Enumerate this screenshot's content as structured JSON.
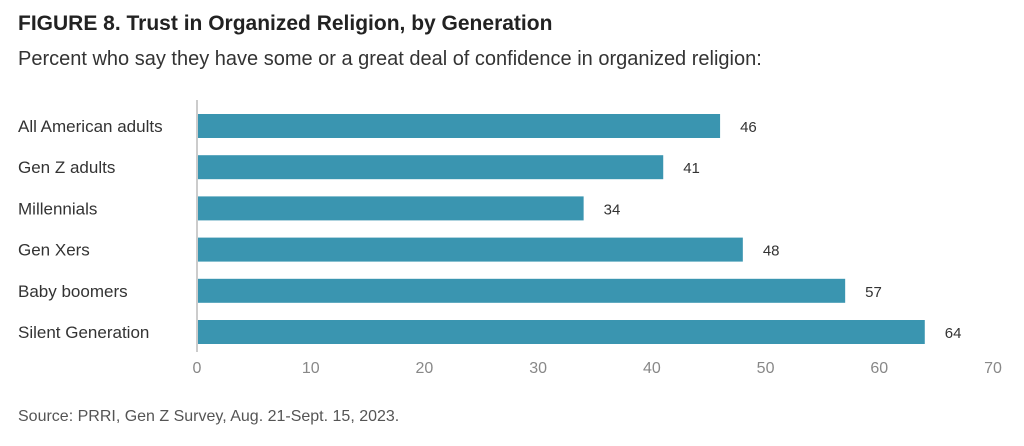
{
  "chart_data": {
    "type": "bar",
    "orientation": "horizontal",
    "title": "FIGURE 8. Trust in Organized Religion, by Generation",
    "subtitle": "Percent who say they have some or a great deal of confidence in organized religion:",
    "categories": [
      "All American adults",
      "Gen Z adults",
      "Millennials",
      "Gen Xers",
      "Baby boomers",
      "Silent Generation"
    ],
    "values": [
      46,
      41,
      34,
      48,
      57,
      64
    ],
    "xlim": [
      0,
      70
    ],
    "xticks": [
      0,
      10,
      20,
      30,
      40,
      50,
      60,
      70
    ],
    "grid": false,
    "bar_color": "#3a95b0",
    "source": "Source: PRRI, Gen Z Survey, Aug. 21-Sept. 15, 2023."
  }
}
